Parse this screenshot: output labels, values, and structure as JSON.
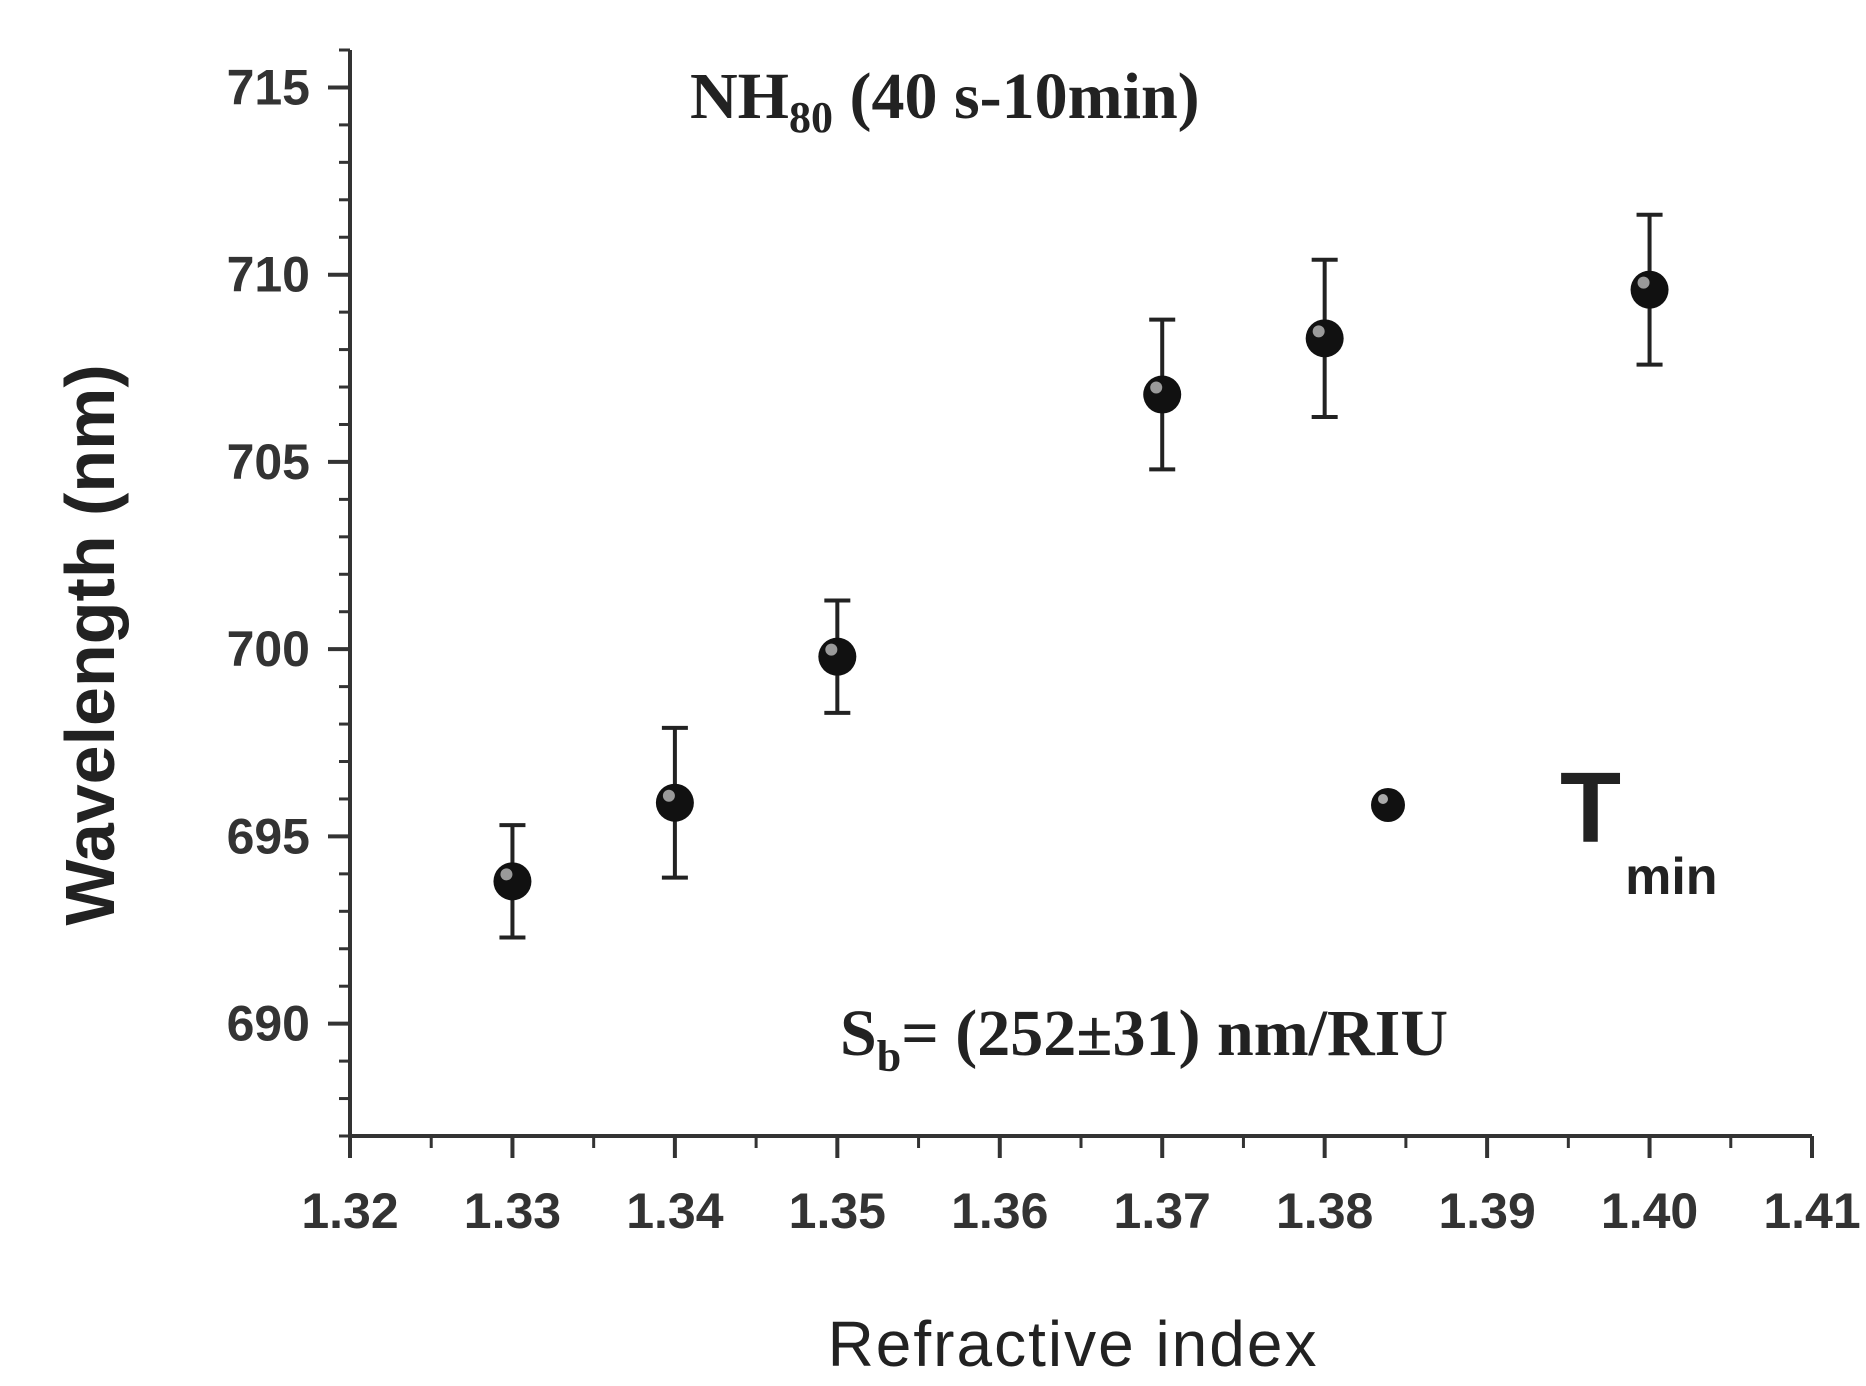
{
  "chart_data": {
    "type": "scatter",
    "title_main": "NH",
    "title_sub": "80",
    "title_rest": " (40 s-10min)",
    "xlabel": "Refractive index",
    "ylabel": "Wavelength (nm)",
    "xlim": [
      1.32,
      1.41
    ],
    "ylim": [
      687,
      716
    ],
    "x_ticks": [
      1.32,
      1.33,
      1.34,
      1.35,
      1.36,
      1.37,
      1.38,
      1.39,
      1.4,
      1.41
    ],
    "x_tick_labels": [
      "1.32",
      "1.33",
      "1.34",
      "1.35",
      "1.36",
      "1.37",
      "1.38",
      "1.39",
      "1.40",
      "1.41"
    ],
    "y_ticks": [
      690,
      695,
      700,
      705,
      710,
      715
    ],
    "y_tick_labels": [
      "690",
      "695",
      "700",
      "705",
      "710",
      "715"
    ],
    "legend": {
      "main": "T",
      "sub": "min",
      "position": "right"
    },
    "annotation": {
      "prefix": "S",
      "sub": "b",
      "rest": "= (252±31) nm/RIU"
    },
    "series": [
      {
        "name": "Tmin",
        "x": [
          1.33,
          1.34,
          1.35,
          1.37,
          1.38,
          1.4
        ],
        "y": [
          693.8,
          695.9,
          699.8,
          706.8,
          708.3,
          709.6
        ],
        "err": [
          1.5,
          2.0,
          1.5,
          2.0,
          2.1,
          2.0
        ]
      }
    ],
    "colors": {
      "marker": "#111111",
      "axis": "#333333"
    }
  }
}
